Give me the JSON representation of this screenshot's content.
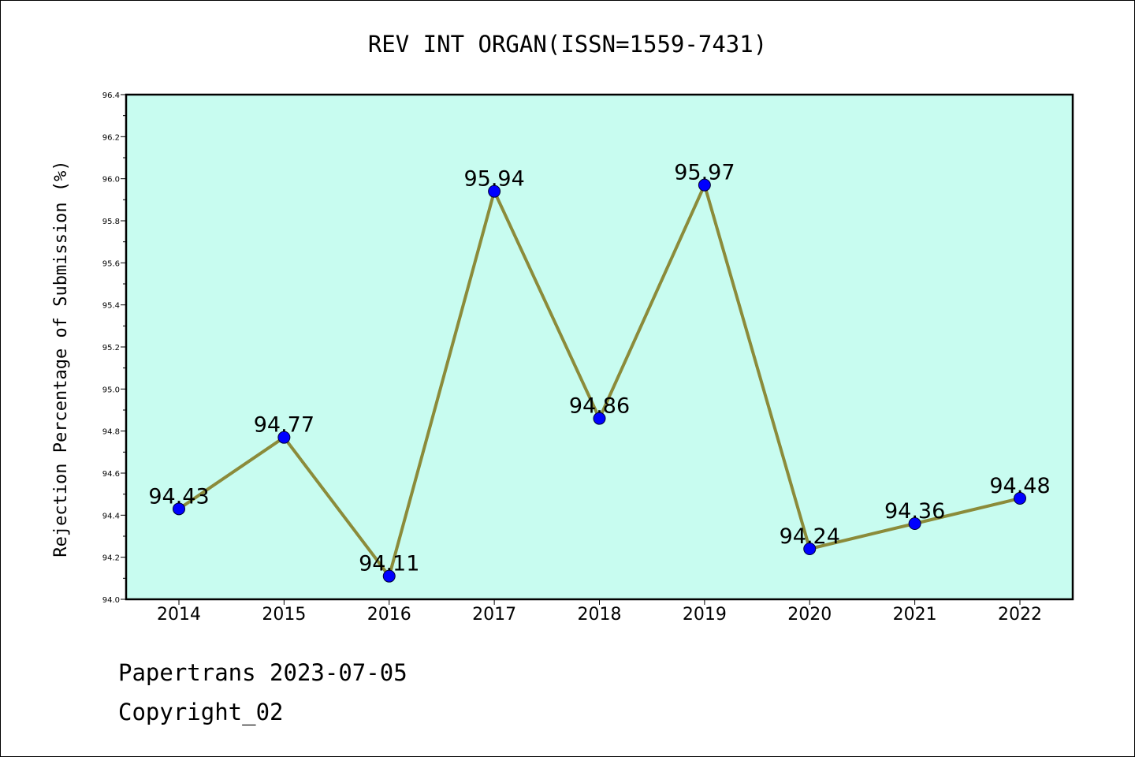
{
  "chart_data": {
    "type": "line",
    "title": "REV INT ORGAN(ISSN=1559-7431)",
    "xlabel": "",
    "ylabel": "Rejection Percentage of Submission (%)",
    "categories": [
      "2014",
      "2015",
      "2016",
      "2017",
      "2018",
      "2019",
      "2020",
      "2021",
      "2022"
    ],
    "series": [
      {
        "values": [
          94.43,
          94.77,
          94.11,
          95.94,
          94.86,
          95.97,
          94.24,
          94.36,
          94.48
        ],
        "labels": [
          "94.43",
          "94.77",
          "94.11",
          "95.94",
          "94.86",
          "95.97",
          "94.24",
          "94.36",
          "94.48"
        ],
        "line_color": "#8b8b3a",
        "marker_color": "#0000ff"
      }
    ],
    "ylim": [
      94.0,
      96.4
    ],
    "yticks": [
      "94.0",
      "94.2",
      "94.4",
      "94.6",
      "94.8",
      "95.0",
      "95.2",
      "95.4",
      "95.6",
      "95.8",
      "96.0",
      "96.2",
      "96.4"
    ],
    "grid": false,
    "plot_background": "#c8fcf0"
  },
  "footer": {
    "line1": "Papertrans 2023-07-05",
    "line2": "Copyright_02"
  }
}
